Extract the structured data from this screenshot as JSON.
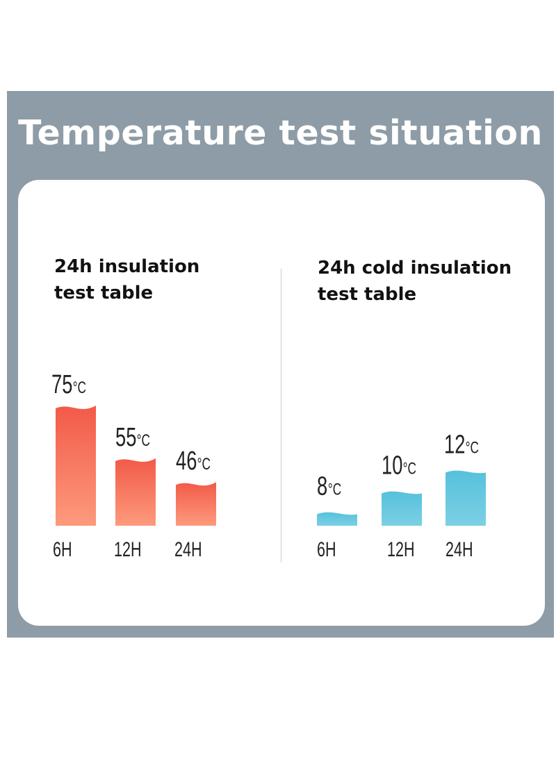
{
  "title": "Temperature test situation",
  "colors": {
    "panel": "#8d9ca6",
    "hot_top": "#f25a48",
    "hot_bottom": "#fd9a7d",
    "cold_top": "#56c1dc",
    "cold_bottom": "#7cd0e4"
  },
  "chart_data": [
    {
      "type": "bar",
      "title_lines": [
        "24h insulation",
        "test table"
      ],
      "categories": [
        "6H",
        "12H",
        "24H"
      ],
      "values": [
        75,
        55,
        46
      ],
      "labels": [
        "75",
        "55",
        "46"
      ],
      "unit": "°C",
      "color": "hot"
    },
    {
      "type": "bar",
      "title_lines": [
        "24h cold insulation",
        "test table"
      ],
      "categories": [
        "6H",
        "12H",
        "24H"
      ],
      "values": [
        8,
        10,
        12
      ],
      "labels": [
        "8",
        "10",
        "12"
      ],
      "unit": "°C",
      "color": "cold"
    }
  ]
}
